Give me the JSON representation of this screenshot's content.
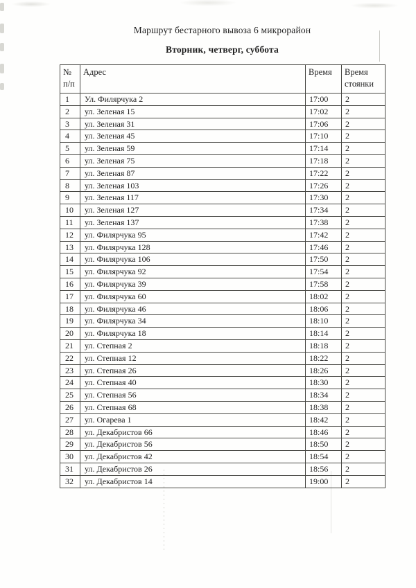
{
  "page": {
    "title": "Маршрут бестарного вывоза 6 микрорайон",
    "subtitle": "Вторник, четверг, суббота"
  },
  "table": {
    "headers": {
      "num": "№ п/п",
      "address": "Адрес",
      "time": "Время",
      "stop": "Время стоянки"
    },
    "rows": [
      {
        "num": "1",
        "address": "Ул. Филярчука 2",
        "time": "17:00",
        "stop": "2"
      },
      {
        "num": "2",
        "address": "ул. Зеленая 15",
        "time": "17:02",
        "stop": "2"
      },
      {
        "num": "3",
        "address": "ул. Зеленая 31",
        "time": "17:06",
        "stop": "2"
      },
      {
        "num": "4",
        "address": "ул. Зеленая 45",
        "time": "17:10",
        "stop": "2"
      },
      {
        "num": "5",
        "address": "ул. Зеленая 59",
        "time": "17:14",
        "stop": "2"
      },
      {
        "num": "6",
        "address": "ул. Зеленая 75",
        "time": "17:18",
        "stop": "2"
      },
      {
        "num": "7",
        "address": "ул. Зеленая 87",
        "time": "17:22",
        "stop": "2"
      },
      {
        "num": "8",
        "address": "ул. Зеленая 103",
        "time": "17:26",
        "stop": "2"
      },
      {
        "num": "9",
        "address": "ул. Зеленая 117",
        "time": "17:30",
        "stop": "2"
      },
      {
        "num": "10",
        "address": "ул. Зеленая 127",
        "time": "17:34",
        "stop": "2"
      },
      {
        "num": "11",
        "address": "ул. Зеленая 137",
        "time": "17:38",
        "stop": "2"
      },
      {
        "num": "12",
        "address": "ул. Филярчука 95",
        "time": "17:42",
        "stop": "2"
      },
      {
        "num": "13",
        "address": "ул. Филярчука 128",
        "time": "17:46",
        "stop": "2"
      },
      {
        "num": "14",
        "address": "ул. Филярчука 106",
        "time": "17:50",
        "stop": "2"
      },
      {
        "num": "15",
        "address": "ул. Филярчука 92",
        "time": "17:54",
        "stop": "2"
      },
      {
        "num": "16",
        "address": "ул. Филярчука 39",
        "time": "17:58",
        "stop": "2"
      },
      {
        "num": "17",
        "address": "ул. Филярчука 60",
        "time": "18:02",
        "stop": "2"
      },
      {
        "num": "18",
        "address": "ул. Филярчука 46",
        "time": "18:06",
        "stop": "2"
      },
      {
        "num": "19",
        "address": "ул. Филярчука 34",
        "time": "18:10",
        "stop": "2"
      },
      {
        "num": "20",
        "address": "ул. Филярчука 18",
        "time": "18:14",
        "stop": "2"
      },
      {
        "num": "21",
        "address": "ул. Степная 2",
        "time": "18:18",
        "stop": "2"
      },
      {
        "num": "22",
        "address": "ул. Степная 12",
        "time": "18:22",
        "stop": "2"
      },
      {
        "num": "23",
        "address": "ул. Степная 26",
        "time": "18:26",
        "stop": "2"
      },
      {
        "num": "24",
        "address": "ул. Степная 40",
        "time": "18:30",
        "stop": "2"
      },
      {
        "num": "25",
        "address": "ул. Степная 56",
        "time": "18:34",
        "stop": "2"
      },
      {
        "num": "26",
        "address": "ул. Степная 68",
        "time": "18:38",
        "stop": "2"
      },
      {
        "num": "27",
        "address": "ул. Огарева 1",
        "time": "18:42",
        "stop": "2"
      },
      {
        "num": "28",
        "address": "ул. Декабристов 66",
        "time": "18:46",
        "stop": "2"
      },
      {
        "num": "29",
        "address": "ул. Декабристов 56",
        "time": "18:50",
        "stop": "2"
      },
      {
        "num": "30",
        "address": "ул. Декабристов 42",
        "time": "18:54",
        "stop": "2"
      },
      {
        "num": "31",
        "address": "ул. Декабристов 26",
        "time": "18:56",
        "stop": "2"
      },
      {
        "num": "32",
        "address": "ул. Декабристов 14",
        "time": "19:00",
        "stop": "2"
      }
    ]
  }
}
